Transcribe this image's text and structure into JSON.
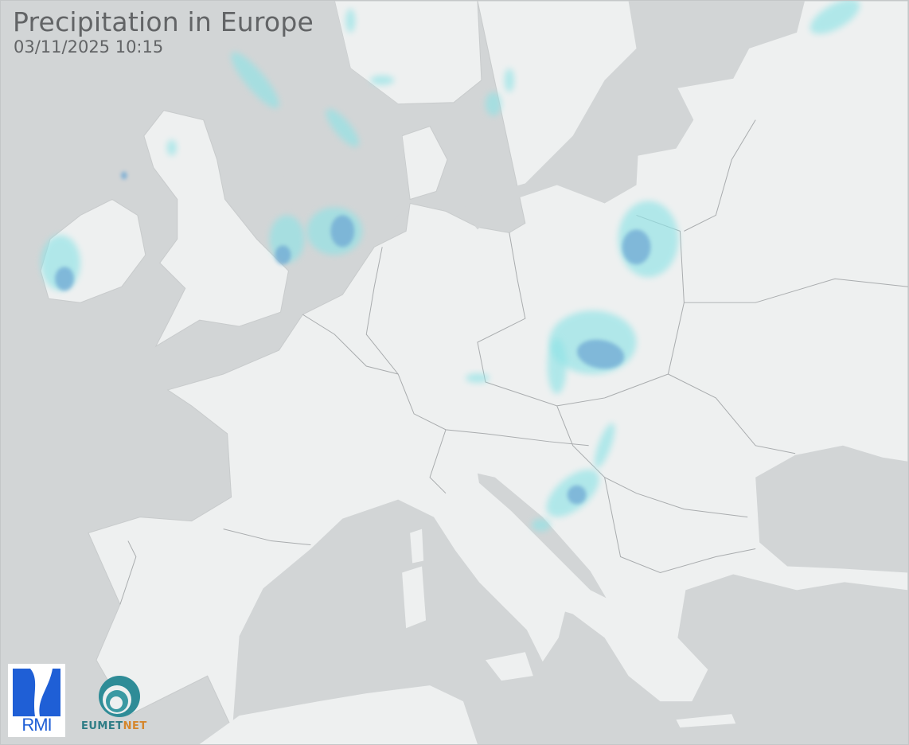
{
  "header": {
    "title": "Precipitation in Europe",
    "timestamp": "03/11/2025 10:15"
  },
  "logos": {
    "rmi": "RMI",
    "eumetnet_part1": "EUMET",
    "eumetnet_part2": "NET"
  },
  "colors": {
    "sea": "#d2d5d6",
    "land": "#eef0f0",
    "border": "#a9acae",
    "precip_light": "#8fe3e6",
    "precip_moderate": "#6fa9d4",
    "rmi_blue": "#1f5fd6",
    "eumetnet_teal": "#2f7d86",
    "eumetnet_orange": "#d5862c"
  }
}
